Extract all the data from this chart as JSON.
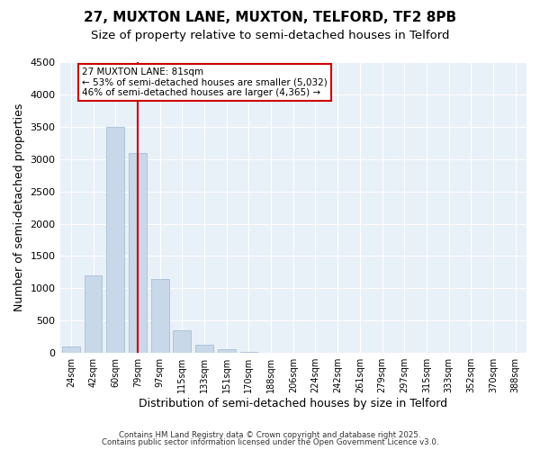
{
  "title1": "27, MUXTON LANE, MUXTON, TELFORD, TF2 8PB",
  "title2": "Size of property relative to semi-detached houses in Telford",
  "xlabel": "Distribution of semi-detached houses by size in Telford",
  "ylabel": "Number of semi-detached properties",
  "categories": [
    "24sqm",
    "42sqm",
    "60sqm",
    "79sqm",
    "97sqm",
    "115sqm",
    "133sqm",
    "151sqm",
    "170sqm",
    "188sqm",
    "206sqm",
    "224sqm",
    "242sqm",
    "261sqm",
    "279sqm",
    "297sqm",
    "315sqm",
    "333sqm",
    "352sqm",
    "370sqm",
    "388sqm"
  ],
  "values": [
    100,
    1200,
    3500,
    3100,
    1150,
    350,
    130,
    60,
    10,
    5,
    3,
    2,
    1,
    1,
    0,
    0,
    0,
    0,
    0,
    0,
    0
  ],
  "bar_color": "#c8d8e8",
  "bar_edge_color": "#a0b8d0",
  "vline_x": 3.0,
  "vline_color": "#cc0000",
  "annotation_line1": "27 MUXTON LANE: 81sqm",
  "annotation_line2": "← 53% of semi-detached houses are smaller (5,032)",
  "annotation_line3": "46% of semi-detached houses are larger (4,365) →",
  "annotation_box_color": "#ffffff",
  "annotation_box_edge": "#cc0000",
  "ylim": [
    0,
    4500
  ],
  "yticks": [
    0,
    500,
    1000,
    1500,
    2000,
    2500,
    3000,
    3500,
    4000,
    4500
  ],
  "footnote1": "Contains HM Land Registry data © Crown copyright and database right 2025.",
  "footnote2": "Contains public sector information licensed under the Open Government Licence v3.0.",
  "plot_bg_color": "#e8f0f8",
  "title1_fontsize": 11,
  "title2_fontsize": 9.5,
  "tick_fontsize": 7,
  "label_fontsize": 9
}
